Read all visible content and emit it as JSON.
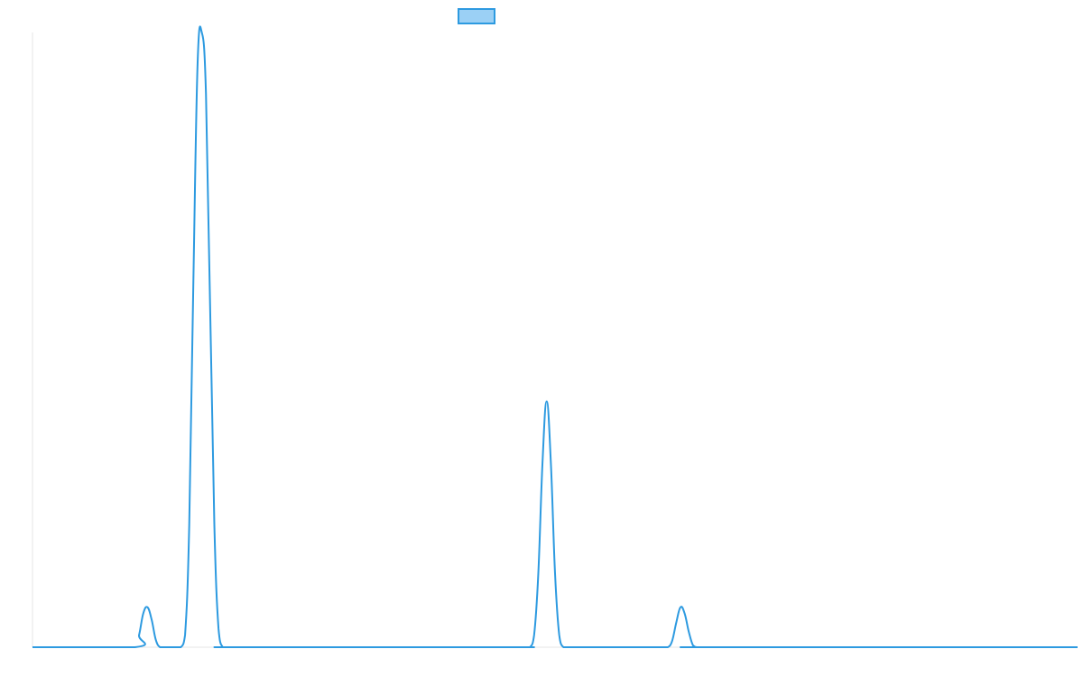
{
  "chart_data": {
    "type": "line",
    "title": "",
    "xlabel": "",
    "ylabel": "",
    "xlim": [
      0,
      1000
    ],
    "ylim": [
      0,
      1
    ],
    "grid": false,
    "legend": {
      "placement": "top-center",
      "entries": [
        {
          "label": "",
          "color": "#2d9ae0",
          "fill": "#9bd0f5"
        }
      ]
    },
    "series": [
      {
        "color": "#2d9ae0",
        "x": [
          0,
          98,
          102,
          106,
          110,
          114,
          118,
          122,
          126,
          130,
          134,
          138,
          142,
          146,
          150,
          154,
          158,
          162,
          166,
          170,
          174,
          178,
          182,
          186,
          190,
          194,
          198,
          456,
          460,
          464,
          468,
          472,
          476,
          480,
          484,
          488,
          492,
          496,
          500,
          504,
          508,
          512,
          516,
          520,
          524,
          528,
          532,
          536,
          540,
          544,
          548,
          552,
          556,
          560,
          564,
          568,
          572,
          576,
          580,
          584,
          588,
          592,
          596,
          600,
          604,
          608,
          612,
          616,
          620,
          624,
          628,
          632,
          636,
          640,
          644,
          648,
          652,
          1000
        ],
        "y": [
          0,
          0,
          0.02,
          0.055,
          0.065,
          0.045,
          0.012,
          0,
          0,
          0,
          0,
          0,
          0,
          0.02,
          0.2,
          0.6,
          0.95,
          1.0,
          0.9,
          0.55,
          0.2,
          0.03,
          0,
          0,
          0,
          0,
          0,
          0,
          0,
          0,
          0,
          0,
          0,
          0.02,
          0.12,
          0.3,
          0.4,
          0.3,
          0.12,
          0.02,
          0,
          0,
          0,
          0,
          0,
          0,
          0,
          0,
          0,
          0,
          0,
          0,
          0,
          0,
          0,
          0,
          0,
          0,
          0,
          0,
          0,
          0,
          0,
          0,
          0,
          0,
          0.01,
          0.04,
          0.065,
          0.055,
          0.025,
          0.003,
          0,
          0,
          0,
          0,
          0,
          0
        ]
      }
    ]
  }
}
